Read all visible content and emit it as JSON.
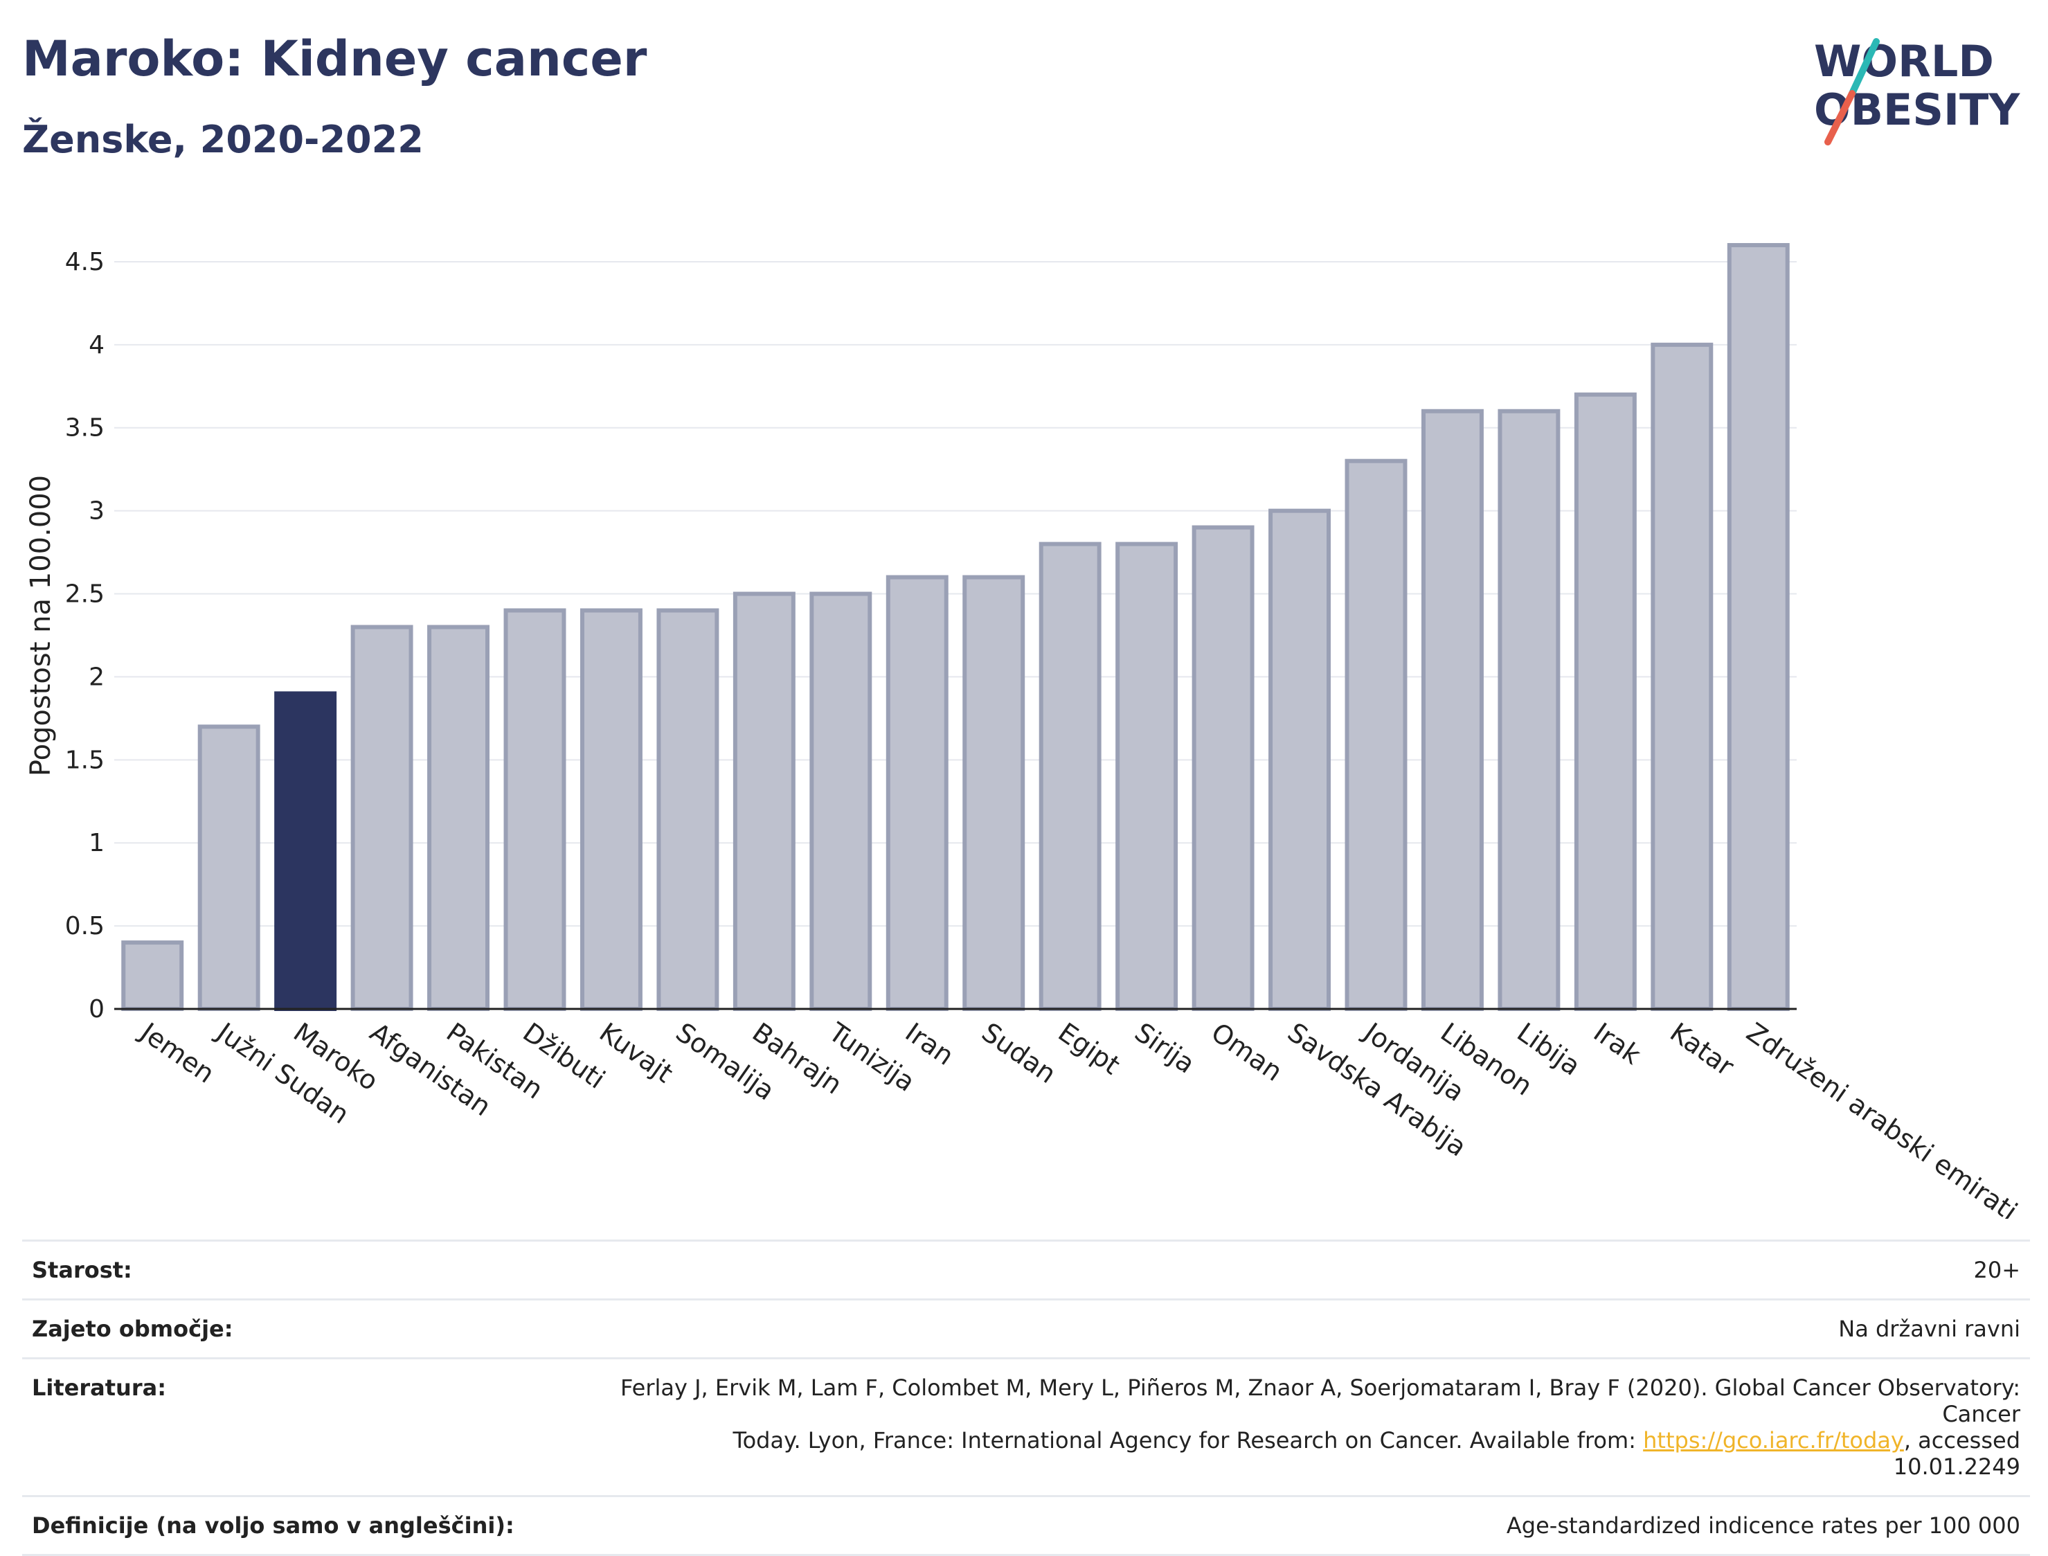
{
  "header": {
    "title": "Maroko: Kidney cancer",
    "subtitle": "Ženske, 2020-2022",
    "logo_text_line1": "WORLD",
    "logo_text_line2": "OBESITY"
  },
  "colors": {
    "title": "#2d365f",
    "highlight_bar": "#2c3560",
    "bar_fill": "#bec1ce",
    "bar_stroke": "#9aa0b5",
    "logo_teal": "#2bb8b5",
    "logo_red": "#e8604c",
    "link": "#f0b429"
  },
  "chart_data": {
    "type": "bar",
    "ylabel": "Pogostost na 100.000",
    "xlabel": "",
    "ylim": [
      0,
      4.7
    ],
    "yticks": [
      "0",
      "0.5",
      "1",
      "1.5",
      "2",
      "2.5",
      "3",
      "3.5",
      "4",
      "4.5"
    ],
    "ytick_values": [
      0,
      0.5,
      1,
      1.5,
      2,
      2.5,
      3,
      3.5,
      4,
      4.5
    ],
    "grid": true,
    "highlight": "Maroko",
    "categories": [
      "Jemen",
      "Južni Sudan",
      "Maroko",
      "Afganistan",
      "Pakistan",
      "Džibuti",
      "Kuvajt",
      "Somalija",
      "Bahrajn",
      "Tunizija",
      "Iran",
      "Sudan",
      "Egipt",
      "Sirija",
      "Oman",
      "Savdska Arabija",
      "Jordanija",
      "Libanon",
      "Libija",
      "Irak",
      "Katar",
      "Združeni arabski emirati"
    ],
    "values": [
      0.4,
      1.7,
      1.9,
      2.3,
      2.3,
      2.4,
      2.4,
      2.4,
      2.5,
      2.5,
      2.6,
      2.6,
      2.8,
      2.8,
      2.9,
      3.0,
      3.3,
      3.6,
      3.6,
      3.7,
      4.0,
      4.6
    ]
  },
  "meta": [
    {
      "key": "Starost:",
      "value": "20+"
    },
    {
      "key": "Zajeto območje:",
      "value": "Na državni ravni"
    },
    {
      "key": "Literatura:",
      "value_line1": "Ferlay J, Ervik M, Lam F, Colombet M, Mery L, Piñeros M, Znaor A, Soerjomataram I, Bray F (2020). Global Cancer Observatory: Cancer",
      "value_line2_pre": "Today. Lyon, France: International Agency for Research on Cancer. Available from: ",
      "link": "https://gco.iarc.fr/today",
      "value_line2_post": ", accessed 10.01.2249"
    },
    {
      "key": "Definicije (na voljo samo v angleščini):",
      "value": "Age-standardized indicence rates per 100 000"
    }
  ]
}
